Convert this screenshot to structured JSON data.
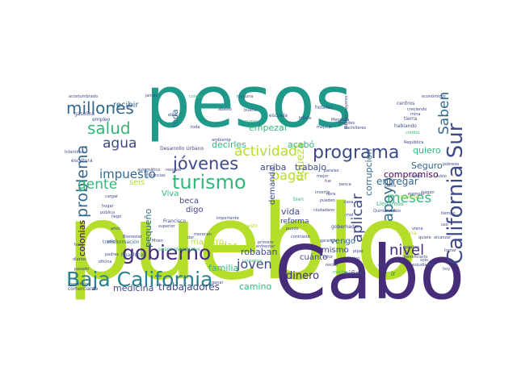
{
  "palette": {
    "teal": "#1f9a8a",
    "purple": "#472c7a",
    "lime": "#b5de2b",
    "green": "#35b779",
    "blue": "#31688e",
    "deep": "#440154",
    "indigo": "#3e4989",
    "yellow": "#fde725",
    "bluegreen": "#26828e",
    "mint": "#6ece58"
  },
  "words": [
    {
      "text": "pueblo",
      "c": "lime"
    },
    {
      "text": "pesos",
      "c": "teal"
    },
    {
      "text": "Cabo",
      "c": "purple"
    },
    {
      "text": "Baja California",
      "c": "bluegreen"
    },
    {
      "text": "California Sur",
      "c": "indigo"
    },
    {
      "text": "programa",
      "c": "indigo"
    },
    {
      "text": "turismo",
      "c": "green"
    },
    {
      "text": "gobierno",
      "c": "purple"
    },
    {
      "text": "millones",
      "c": "blue"
    },
    {
      "text": "salud",
      "c": "green"
    },
    {
      "text": "jóvenes",
      "c": "indigo"
    },
    {
      "text": "agua",
      "c": "indigo"
    },
    {
      "text": "actividad",
      "c": "lime"
    },
    {
      "text": "problema",
      "c": "blue"
    },
    {
      "text": "gente",
      "c": "green"
    },
    {
      "text": "impuesto",
      "c": "blue"
    },
    {
      "text": "pagar",
      "c": "lime"
    },
    {
      "text": "apoyo",
      "c": "blue"
    },
    {
      "text": "aplicar",
      "c": "indigo"
    },
    {
      "text": "nivel",
      "c": "purple"
    },
    {
      "text": "meses",
      "c": "green"
    },
    {
      "text": "Saben",
      "c": "blue"
    },
    {
      "text": "joven",
      "c": "indigo"
    },
    {
      "text": "entregar",
      "c": "blue"
    },
    {
      "text": "dinero",
      "c": "purple"
    },
    {
      "text": "trabajadores",
      "c": "indigo"
    },
    {
      "text": "medicina",
      "c": "indigo"
    },
    {
      "text": "camino",
      "c": "green"
    },
    {
      "text": "colonias",
      "c": "deep"
    },
    {
      "text": "pequeño",
      "c": "blue"
    },
    {
      "text": "familia",
      "c": "green"
    },
    {
      "text": "cuidar",
      "c": "lime"
    },
    {
      "text": "robaban",
      "c": "indigo"
    },
    {
      "text": "vida",
      "c": "indigo"
    },
    {
      "text": "reforma",
      "c": "indigo"
    },
    {
      "text": "riqueza",
      "c": "lime"
    },
    {
      "text": "arriba",
      "c": "indigo"
    },
    {
      "text": "trabajo",
      "c": "indigo"
    },
    {
      "text": "corrupción",
      "c": "blue"
    },
    {
      "text": "compromiso",
      "c": "deep"
    },
    {
      "text": "Seguro",
      "c": "blue"
    },
    {
      "text": "quiero",
      "c": "green"
    },
    {
      "text": "empezar",
      "c": "green"
    },
    {
      "text": "decirles",
      "c": "green"
    },
    {
      "text": "acabó",
      "c": "green"
    },
    {
      "text": "recibir",
      "c": "blue"
    },
    {
      "text": "beca",
      "c": "indigo"
    },
    {
      "text": "digo",
      "c": "indigo"
    },
    {
      "text": "Viva",
      "c": "green"
    },
    {
      "text": "seis",
      "c": "lime"
    },
    {
      "text": "maestro",
      "c": "lime"
    },
    {
      "text": "mismo",
      "c": "indigo"
    },
    {
      "text": "vengo",
      "c": "blue"
    },
    {
      "text": "cuánto",
      "c": "indigo"
    },
    {
      "text": "niños",
      "c": "indigo"
    },
    {
      "text": "demanda",
      "c": "indigo"
    },
    {
      "text": "toda",
      "c": "blue"
    },
    {
      "text": "Desarrollo Urbano",
      "c": "indigo"
    },
    {
      "text": "pesos mensuales",
      "c": "green"
    },
    {
      "text": "Llegamos",
      "c": "green"
    },
    {
      "text": "gobernador",
      "c": "indigo"
    },
    {
      "text": "transformación",
      "c": "blue"
    },
    {
      "text": "huachicol",
      "c": "blue"
    },
    {
      "text": "Francisco",
      "c": "indigo"
    },
    {
      "text": "escuela",
      "c": "indigo"
    },
    {
      "text": "gasolina",
      "c": "indigo"
    },
    {
      "text": "empleo",
      "c": "indigo"
    },
    {
      "text": "hoteles",
      "c": "indigo"
    },
    {
      "text": "centros",
      "c": "indigo"
    },
    {
      "text": "tierra",
      "c": "indigo"
    },
    {
      "text": "hablando",
      "c": "indigo"
    },
    {
      "text": "escritura",
      "c": "indigo"
    },
    {
      "text": "comerciante",
      "c": "indigo"
    },
    {
      "text": "beneficiario",
      "c": "indigo"
    },
    {
      "text": "estudiando",
      "c": "indigo"
    },
    {
      "text": "alcanzar",
      "c": "indigo"
    },
    {
      "text": "contraste",
      "c": "indigo"
    },
    {
      "text": "palabra",
      "c": "indigo"
    },
    {
      "text": "Quintana Roo",
      "c": "indigo"
    },
    {
      "text": "pobreza",
      "c": "indigo"
    },
    {
      "text": "adultos mayores",
      "c": "indigo"
    },
    {
      "text": "acostumbrado",
      "c": "indigo"
    },
    {
      "text": "ninguna",
      "c": "indigo"
    },
    {
      "text": "colegio",
      "c": "green"
    },
    {
      "text": "abasto",
      "c": "indigo"
    },
    {
      "text": "económicos",
      "c": "indigo"
    },
    {
      "text": "justicia",
      "c": "lime"
    },
    {
      "text": "nacional",
      "c": "lime"
    },
    {
      "text": "presupuesto",
      "c": "lime"
    },
    {
      "text": "importante",
      "c": "indigo"
    },
    {
      "text": "Bienestar",
      "c": "indigo"
    },
    {
      "text": "superior",
      "c": "indigo"
    },
    {
      "text": "cargar",
      "c": "indigo"
    },
    {
      "text": "oficina",
      "c": "indigo"
    },
    {
      "text": "hora",
      "c": "indigo"
    },
    {
      "text": "diarios",
      "c": "indigo"
    },
    {
      "text": "padres",
      "c": "indigo"
    },
    {
      "text": "pública",
      "c": "indigo"
    },
    {
      "text": "llegó",
      "c": "indigo"
    },
    {
      "text": "años",
      "c": "indigo"
    },
    {
      "text": "Infantiles",
      "c": "indigo"
    },
    {
      "text": "automático",
      "c": "indigo"
    },
    {
      "text": "resolver",
      "c": "indigo"
    },
    {
      "text": "Estancias",
      "c": "indigo"
    },
    {
      "text": "bachilleres",
      "c": "indigo"
    },
    {
      "text": "mejorar",
      "c": "indigo"
    },
    {
      "text": "Mendoza",
      "c": "indigo"
    },
    {
      "text": "grandes",
      "c": "indigo"
    },
    {
      "text": "creciendo",
      "c": "indigo"
    },
    {
      "text": "República",
      "c": "indigo"
    },
    {
      "text": "cierre",
      "c": "indigo"
    },
    {
      "text": "invertir",
      "c": "indigo"
    },
    {
      "text": "ciudadano",
      "c": "indigo"
    },
    {
      "text": "garantía",
      "c": "indigo"
    },
    {
      "text": "enfrentar",
      "c": "indigo"
    },
    {
      "text": "primero",
      "c": "indigo"
    },
    {
      "text": "noche",
      "c": "indigo"
    },
    {
      "text": "crédito",
      "c": "green"
    },
    {
      "text": "mina",
      "c": "indigo"
    },
    {
      "text": "paraíso",
      "c": "indigo"
    },
    {
      "text": "nuevo",
      "c": "green"
    },
    {
      "text": "bueno",
      "c": "indigo"
    },
    {
      "text": "ambiente",
      "c": "indigo"
    },
    {
      "text": "billete",
      "c": "indigo"
    },
    {
      "text": "tutor",
      "c": "indigo"
    },
    {
      "text": "pipar",
      "c": "indigo"
    },
    {
      "text": "piso",
      "c": "indigo"
    },
    {
      "text": "sólo",
      "c": "indigo"
    },
    {
      "text": "merecen",
      "c": "indigo"
    },
    {
      "text": "dar",
      "c": "indigo"
    },
    {
      "text": "bien",
      "c": "green"
    },
    {
      "text": "ir",
      "c": "blue"
    },
    {
      "text": "contamos",
      "c": "green"
    },
    {
      "text": "mucho",
      "c": "green"
    },
    {
      "text": "puede",
      "c": "indigo"
    },
    {
      "text": "mejor",
      "c": "indigo"
    },
    {
      "text": "abajo",
      "c": "indigo"
    },
    {
      "text": "obra",
      "c": "indigo"
    },
    {
      "text": "viene",
      "c": "indigo"
    },
    {
      "text": "hagan",
      "c": "indigo"
    },
    {
      "text": "solo",
      "c": "indigo"
    },
    {
      "text": "pasado",
      "c": "indigo"
    },
    {
      "text": "beneficio",
      "c": "indigo"
    },
    {
      "text": "hogar",
      "c": "indigo"
    },
    {
      "text": "ellos",
      "c": "indigo"
    },
    {
      "text": "pesca",
      "c": "indigo"
    },
    {
      "text": "pueden",
      "c": "indigo"
    },
    {
      "text": "casa",
      "c": "indigo"
    },
    {
      "text": "ganar",
      "c": "indigo"
    },
    {
      "text": "dijo",
      "c": "indigo"
    },
    {
      "text": "toda",
      "c": "indigo"
    },
    {
      "text": "mal",
      "c": "indigo"
    },
    {
      "text": "rubio",
      "c": "indigo"
    },
    {
      "text": "uso",
      "c": "indigo"
    },
    {
      "text": "fue",
      "c": "indigo"
    },
    {
      "text": "Miren",
      "c": "indigo"
    },
    {
      "text": "ejemplo",
      "c": "indigo"
    },
    {
      "text": "tiempo",
      "c": "indigo"
    },
    {
      "text": "tomar",
      "c": "indigo"
    },
    {
      "text": "quiere",
      "c": "indigo"
    },
    {
      "text": "hoy",
      "c": "indigo"
    },
    {
      "text": "jamás",
      "c": "indigo"
    }
  ]
}
